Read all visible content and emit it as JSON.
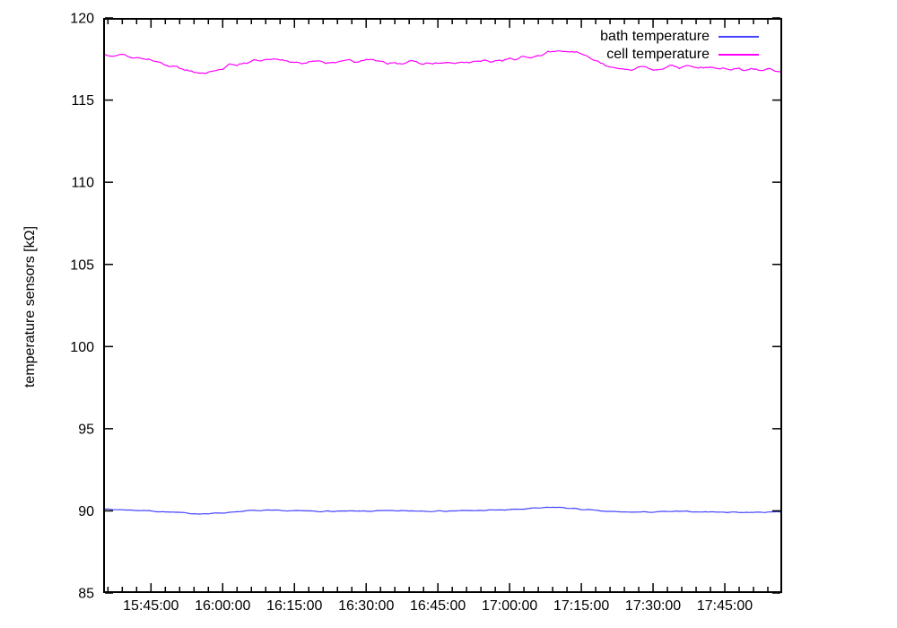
{
  "chart_data": {
    "type": "line",
    "title": "",
    "xlabel": "",
    "ylabel": "temperature sensors [kΩ]",
    "ylim": [
      85,
      120
    ],
    "y_ticks": [
      85,
      90,
      95,
      100,
      105,
      110,
      115,
      120
    ],
    "grid": false,
    "legend_position": "top-right-inside",
    "x_start_time": "15:35:00",
    "x_end_time": "17:57:00",
    "t_range": [
      0,
      142
    ],
    "x_major_ticks": [
      {
        "t": 10,
        "label": "15:45:00"
      },
      {
        "t": 25,
        "label": "16:00:00"
      },
      {
        "t": 40,
        "label": "16:15:00"
      },
      {
        "t": 55,
        "label": "16:30:00"
      },
      {
        "t": 70,
        "label": "16:45:00"
      },
      {
        "t": 85,
        "label": "17:00:00"
      },
      {
        "t": 100,
        "label": "17:15:00"
      },
      {
        "t": 115,
        "label": "17:30:00"
      },
      {
        "t": 130,
        "label": "17:45:00"
      }
    ],
    "x_minor_ticks": {
      "first_t": 1,
      "step_min": 3,
      "last_t": 139
    },
    "axis_color": "#000000",
    "series": [
      {
        "name": "bath temperature",
        "color": "#4444ff",
        "unit": "kΩ",
        "noise_amplitude": 0.03,
        "noise_seed": 7,
        "points": [
          [
            0,
            90.1
          ],
          [
            5,
            90.06
          ],
          [
            10,
            90.0
          ],
          [
            14,
            89.92
          ],
          [
            18,
            89.85
          ],
          [
            22,
            89.82
          ],
          [
            25,
            89.88
          ],
          [
            28,
            89.96
          ],
          [
            31,
            90.01
          ],
          [
            36,
            90.02
          ],
          [
            42,
            89.99
          ],
          [
            48,
            89.97
          ],
          [
            54,
            89.98
          ],
          [
            60,
            90.0
          ],
          [
            66,
            90.0
          ],
          [
            72,
            89.99
          ],
          [
            78,
            90.02
          ],
          [
            84,
            90.06
          ],
          [
            88,
            90.11
          ],
          [
            92,
            90.18
          ],
          [
            94,
            90.22
          ],
          [
            96,
            90.2
          ],
          [
            99,
            90.12
          ],
          [
            102,
            90.04
          ],
          [
            105,
            89.97
          ],
          [
            108,
            89.93
          ],
          [
            112,
            89.92
          ],
          [
            116,
            89.94
          ],
          [
            120,
            89.96
          ],
          [
            124,
            89.95
          ],
          [
            128,
            89.93
          ],
          [
            132,
            89.92
          ],
          [
            136,
            89.91
          ],
          [
            139,
            89.92
          ],
          [
            142,
            89.95
          ]
        ]
      },
      {
        "name": "cell temperature",
        "color": "#ff00ff",
        "unit": "kΩ",
        "noise_amplitude": 0.1,
        "noise_seed": 13,
        "points": [
          [
            0,
            117.88
          ],
          [
            3,
            117.78
          ],
          [
            5,
            117.66
          ],
          [
            8,
            117.55
          ],
          [
            10,
            117.45
          ],
          [
            12,
            117.32
          ],
          [
            14,
            117.15
          ],
          [
            16,
            116.95
          ],
          [
            18,
            116.82
          ],
          [
            20,
            116.73
          ],
          [
            22,
            116.72
          ],
          [
            24,
            116.88
          ],
          [
            26,
            117.05
          ],
          [
            28,
            117.2
          ],
          [
            30,
            117.33
          ],
          [
            33,
            117.38
          ],
          [
            36,
            117.42
          ],
          [
            39,
            117.35
          ],
          [
            42,
            117.3
          ],
          [
            45,
            117.32
          ],
          [
            48,
            117.33
          ],
          [
            51,
            117.38
          ],
          [
            54,
            117.4
          ],
          [
            57,
            117.36
          ],
          [
            60,
            117.32
          ],
          [
            63,
            117.28
          ],
          [
            66,
            117.25
          ],
          [
            69,
            117.23
          ],
          [
            72,
            117.22
          ],
          [
            75,
            117.27
          ],
          [
            78,
            117.32
          ],
          [
            81,
            117.38
          ],
          [
            84,
            117.45
          ],
          [
            87,
            117.52
          ],
          [
            90,
            117.65
          ],
          [
            92,
            117.8
          ],
          [
            94,
            117.96
          ],
          [
            96,
            118.02
          ],
          [
            98,
            117.95
          ],
          [
            100,
            117.75
          ],
          [
            102,
            117.55
          ],
          [
            104,
            117.3
          ],
          [
            106,
            117.08
          ],
          [
            108,
            116.95
          ],
          [
            111,
            116.9
          ],
          [
            114,
            116.9
          ],
          [
            117,
            116.96
          ],
          [
            120,
            117.02
          ],
          [
            123,
            117.0
          ],
          [
            126,
            116.97
          ],
          [
            129,
            116.92
          ],
          [
            132,
            116.9
          ],
          [
            135,
            116.87
          ],
          [
            138,
            116.85
          ],
          [
            140,
            116.83
          ],
          [
            142,
            116.8
          ]
        ]
      }
    ]
  },
  "legend": {
    "items": [
      {
        "label": "bath temperature"
      },
      {
        "label": "cell temperature"
      }
    ]
  }
}
